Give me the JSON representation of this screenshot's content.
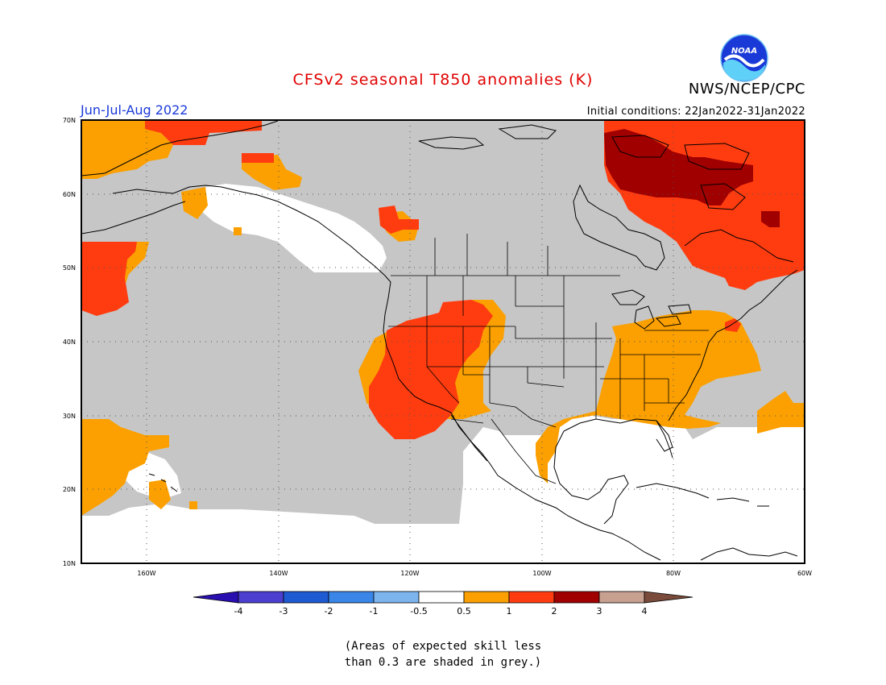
{
  "title": "CFSv2 seasonal T850 anomalies (K)",
  "organization": "NWS/NCEP/CPC",
  "logo_text": "NOAA",
  "period": "Jun-Jul-Aug 2022",
  "initial_conditions": "Initial conditions: 22Jan2022-31Jan2022",
  "note_line1": "(Areas of expected skill less",
  "note_line2": "than 0.3 are shaded in grey.)",
  "map": {
    "lon_range": [
      -170,
      -60
    ],
    "lat_range": [
      10,
      70
    ],
    "lat_labels": [
      "10N",
      "20N",
      "30N",
      "40N",
      "50N",
      "60N",
      "70N"
    ],
    "lon_labels": [
      "160W",
      "140W",
      "120W",
      "100W",
      "80W",
      "60W"
    ],
    "grid": "dotted"
  },
  "colorbar": {
    "labels": [
      "-4",
      "-3",
      "-2",
      "-1",
      "-0.5",
      "0.5",
      "1",
      "2",
      "3",
      "4"
    ],
    "colors": [
      "#2a0fb0",
      "#4a3fce",
      "#1e5ad2",
      "#3a86e8",
      "#7cb4ee",
      "#ffffff",
      "#fba000",
      "#ff3c10",
      "#a00000",
      "#c8a090",
      "#7a4a3a"
    ]
  },
  "legend_colors": {
    "grey": "#c6c6c6",
    "orange": "#fba000",
    "red": "#ff3c10",
    "darkred": "#a00000"
  }
}
